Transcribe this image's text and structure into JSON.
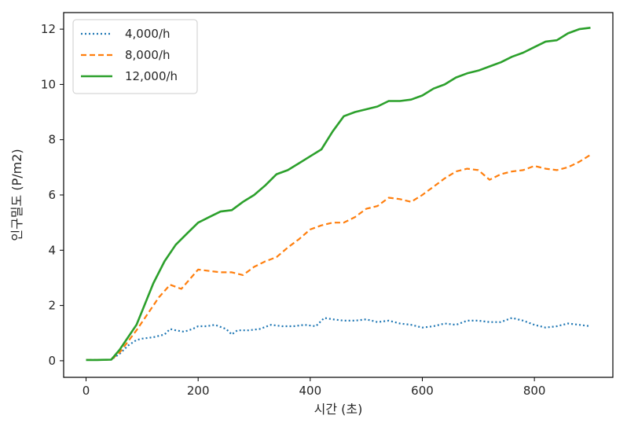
{
  "chart_data": {
    "type": "line",
    "xlabel": "시간 (초)",
    "ylabel": "인구밀도 (P/m2)",
    "xlim": [
      -40,
      940
    ],
    "ylim": [
      -0.6,
      12.6
    ],
    "xticks": [
      0,
      200,
      400,
      600,
      800
    ],
    "yticks": [
      0,
      2,
      4,
      6,
      8,
      10,
      12
    ],
    "xtick_labels": [
      "0",
      "200",
      "400",
      "600",
      "800"
    ],
    "ytick_labels": [
      "0",
      "2",
      "4",
      "6",
      "8",
      "10",
      "12"
    ],
    "grid": false,
    "legend_position": "top-left",
    "series": [
      {
        "name": "4,000/h",
        "color": "#1f77b4",
        "style": "dotted",
        "x": [
          0,
          20,
          45,
          60,
          75,
          90,
          100,
          120,
          140,
          150,
          160,
          175,
          190,
          200,
          215,
          230,
          250,
          260,
          270,
          290,
          310,
          330,
          350,
          370,
          390,
          410,
          425,
          440,
          460,
          480,
          500,
          520,
          540,
          560,
          580,
          600,
          620,
          640,
          660,
          680,
          700,
          720,
          740,
          760,
          780,
          800,
          820,
          840,
          860,
          880,
          900
        ],
        "y": [
          0.03,
          0.03,
          0.04,
          0.25,
          0.55,
          0.75,
          0.8,
          0.85,
          0.95,
          1.15,
          1.1,
          1.05,
          1.15,
          1.25,
          1.25,
          1.3,
          1.15,
          0.95,
          1.1,
          1.1,
          1.15,
          1.3,
          1.25,
          1.25,
          1.3,
          1.25,
          1.55,
          1.5,
          1.45,
          1.45,
          1.5,
          1.4,
          1.45,
          1.35,
          1.3,
          1.2,
          1.25,
          1.35,
          1.3,
          1.45,
          1.45,
          1.4,
          1.4,
          1.55,
          1.45,
          1.3,
          1.2,
          1.25,
          1.35,
          1.3,
          1.25
        ]
      },
      {
        "name": "8,000/h",
        "color": "#ff7f0e",
        "style": "dashed",
        "x": [
          0,
          20,
          45,
          60,
          75,
          90,
          110,
          130,
          150,
          170,
          185,
          200,
          220,
          240,
          260,
          280,
          300,
          320,
          340,
          360,
          380,
          400,
          420,
          440,
          460,
          480,
          500,
          520,
          540,
          560,
          580,
          600,
          620,
          640,
          660,
          680,
          700,
          720,
          740,
          760,
          780,
          800,
          820,
          840,
          860,
          880,
          900
        ],
        "y": [
          0.03,
          0.03,
          0.04,
          0.3,
          0.7,
          1.1,
          1.7,
          2.3,
          2.75,
          2.6,
          2.95,
          3.3,
          3.25,
          3.2,
          3.2,
          3.1,
          3.4,
          3.6,
          3.75,
          4.1,
          4.4,
          4.75,
          4.9,
          5.0,
          5.0,
          5.2,
          5.5,
          5.6,
          5.9,
          5.85,
          5.75,
          6.0,
          6.3,
          6.6,
          6.85,
          6.95,
          6.9,
          6.55,
          6.75,
          6.85,
          6.9,
          7.05,
          6.95,
          6.9,
          7.0,
          7.2,
          7.45
        ]
      },
      {
        "name": "12,000/h",
        "color": "#2ca02c",
        "style": "solid",
        "x": [
          0,
          20,
          45,
          60,
          75,
          90,
          100,
          120,
          140,
          160,
          180,
          200,
          220,
          240,
          260,
          280,
          300,
          320,
          340,
          360,
          380,
          400,
          420,
          440,
          460,
          480,
          500,
          520,
          540,
          560,
          580,
          600,
          620,
          640,
          660,
          680,
          700,
          720,
          740,
          760,
          780,
          800,
          820,
          840,
          860,
          880,
          900
        ],
        "y": [
          0.03,
          0.03,
          0.04,
          0.4,
          0.85,
          1.3,
          1.8,
          2.8,
          3.6,
          4.2,
          4.6,
          5.0,
          5.2,
          5.4,
          5.45,
          5.75,
          6.0,
          6.35,
          6.75,
          6.9,
          7.15,
          7.4,
          7.65,
          8.3,
          8.85,
          9.0,
          9.1,
          9.2,
          9.4,
          9.4,
          9.45,
          9.6,
          9.85,
          10.0,
          10.25,
          10.4,
          10.5,
          10.65,
          10.8,
          11.0,
          11.15,
          11.35,
          11.55,
          11.6,
          11.85,
          12.0,
          12.05
        ]
      }
    ]
  }
}
